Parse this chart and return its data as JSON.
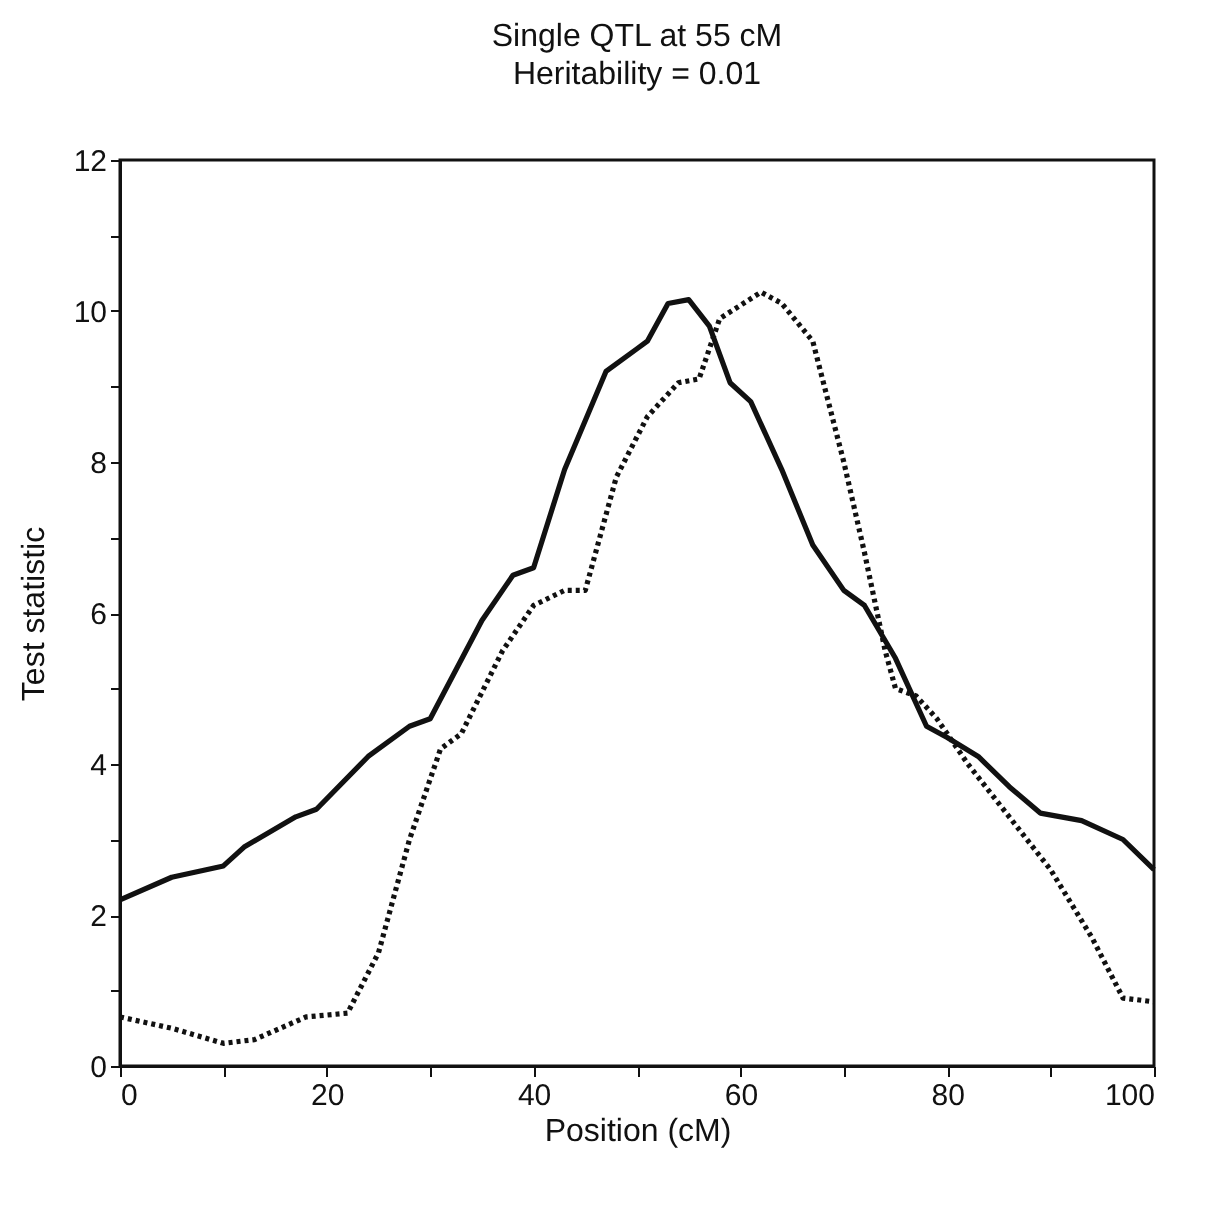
{
  "chart_data": {
    "type": "line",
    "title": "Single QTL at 55 cM",
    "subtitle": "Heritability = 0.01",
    "xlabel": "Position (cM)",
    "ylabel": "Test statistic",
    "xlim": [
      0,
      100
    ],
    "ylim": [
      0,
      12
    ],
    "xticks": [
      0,
      {
        "value": 10,
        "label": null
      },
      20,
      {
        "value": 30,
        "label": null
      },
      40,
      {
        "value": 50,
        "label": null
      },
      60,
      {
        "value": 70,
        "label": null
      },
      80,
      {
        "value": 90,
        "label": null
      },
      100
    ],
    "yticks": [
      0,
      {
        "value": 1,
        "label": null
      },
      2,
      {
        "value": 3,
        "label": null
      },
      4,
      {
        "value": 5,
        "label": null
      },
      6,
      {
        "value": 7,
        "label": null
      },
      8,
      {
        "value": 9,
        "label": null
      },
      10,
      {
        "value": 11,
        "label": null
      },
      12
    ],
    "grid": false,
    "legend": false,
    "marker": "none",
    "series": [
      {
        "color": "#111111",
        "line_style": "solid",
        "x": [
          0,
          5,
          10,
          12,
          17,
          19,
          24,
          28,
          30,
          35,
          38,
          40,
          43,
          47,
          50,
          51,
          53,
          55,
          57,
          59,
          61,
          64,
          67,
          70,
          72,
          75,
          78,
          80,
          83,
          86,
          89,
          93,
          97,
          100
        ],
        "values": [
          2.2,
          2.5,
          2.65,
          2.9,
          3.3,
          3.4,
          4.1,
          4.5,
          4.6,
          5.9,
          6.5,
          6.6,
          7.9,
          9.2,
          9.5,
          9.6,
          10.1,
          10.15,
          9.8,
          9.05,
          8.8,
          7.9,
          6.9,
          6.3,
          6.1,
          5.4,
          4.5,
          4.35,
          4.1,
          3.7,
          3.35,
          3.25,
          3.0,
          2.6
        ]
      },
      {
        "color": "#111111",
        "line_style": "dotted",
        "x": [
          0,
          5,
          10,
          13,
          18,
          22,
          25,
          28,
          31,
          33,
          37,
          40,
          43,
          45,
          48,
          51,
          54,
          56,
          58,
          62,
          64,
          67,
          70,
          72,
          74,
          75,
          77,
          79,
          82,
          86,
          90,
          94,
          97,
          100
        ],
        "values": [
          0.65,
          0.5,
          0.3,
          0.35,
          0.65,
          0.7,
          1.5,
          3.0,
          4.2,
          4.4,
          5.5,
          6.1,
          6.3,
          6.3,
          7.8,
          8.6,
          9.05,
          9.1,
          9.9,
          10.25,
          10.1,
          9.6,
          8.0,
          6.8,
          5.5,
          5.0,
          4.9,
          4.6,
          4.0,
          3.3,
          2.6,
          1.7,
          0.9,
          0.85
        ]
      }
    ]
  }
}
